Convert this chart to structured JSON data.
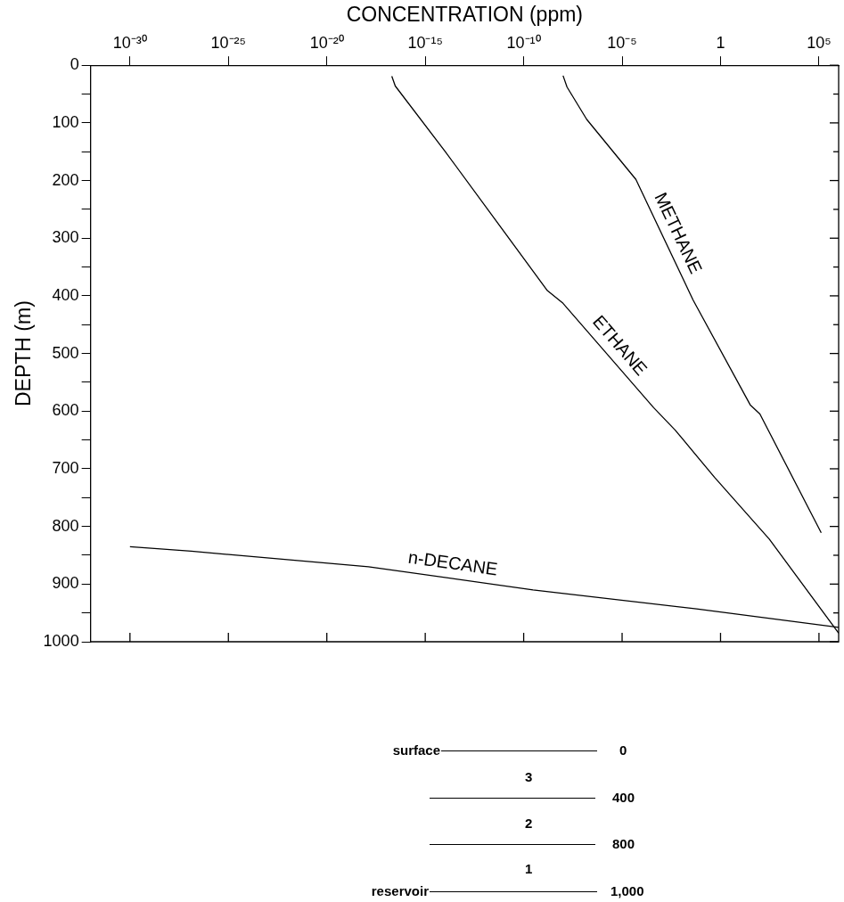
{
  "chart_data": {
    "type": "line",
    "xlabel": "CONCENTRATION (ppm)",
    "ylabel": "DEPTH (m)",
    "log": "x",
    "grid": false,
    "legend": false,
    "xlim": [
      1e-32,
      1000000.0
    ],
    "xticks": [
      {
        "value": 1e-30,
        "label": "10⁻³⁰"
      },
      {
        "value": 1e-25,
        "label": "10⁻²⁵"
      },
      {
        "value": 1e-20,
        "label": "10⁻²⁰"
      },
      {
        "value": 1e-15,
        "label": "10⁻¹⁵"
      },
      {
        "value": 1e-10,
        "label": "10⁻¹⁰"
      },
      {
        "value": 1e-05,
        "label": "10⁻⁵"
      },
      1,
      {
        "value": 100000.0,
        "label": "10⁵"
      }
    ],
    "ylim": [
      1000,
      0
    ],
    "yticks": [
      0,
      {
        "value": 50,
        "label": null
      },
      100,
      {
        "value": 150,
        "label": null
      },
      200,
      {
        "value": 250,
        "label": null
      },
      300,
      {
        "value": 350,
        "label": null
      },
      400,
      {
        "value": 450,
        "label": null
      },
      500,
      {
        "value": 550,
        "label": null
      },
      600,
      {
        "value": 650,
        "label": null
      },
      700,
      {
        "value": 750,
        "label": null
      },
      800,
      {
        "value": 850,
        "label": null
      },
      900,
      {
        "value": 950,
        "label": null
      },
      1000
    ],
    "series": [
      {
        "name": "METHANE",
        "color": "#000000",
        "x": [
          1e-08,
          1.6e-08,
          1.6e-07,
          5e-05,
          0.04,
          32,
          100,
          130000.0
        ],
        "values": [
          18,
          38,
          94,
          198,
          407,
          589,
          605,
          811
        ]
      },
      {
        "name": "ETHANE",
        "color": "#000000",
        "x": [
          2e-17,
          3e-17,
          1e-14,
          1.6e-09,
          1e-08,
          0.0004,
          0.005,
          0.5,
          300,
          1000000.0
        ],
        "values": [
          19,
          36,
          149,
          391,
          413,
          594,
          633,
          715,
          822,
          985
        ]
      },
      {
        "name": "n-DECANE",
        "color": "#000000",
        "x": [
          1e-30,
          1.3e-27,
          1.3e-18,
          3e-10,
          0.06,
          1000000.0
        ],
        "values": [
          835,
          843,
          870,
          910,
          943,
          975
        ]
      }
    ],
    "annotations": [
      "surface",
      "0",
      "3",
      "400",
      "2",
      "800",
      "1",
      "reservoir",
      "1,000"
    ]
  }
}
